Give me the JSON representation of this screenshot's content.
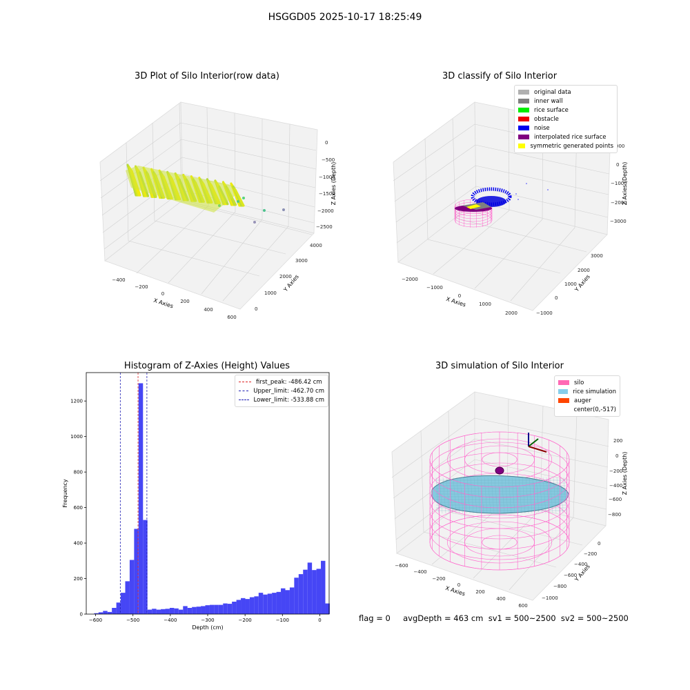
{
  "figure": {
    "suptitle": "HSGGD05 2025-10-17 18:25:49",
    "footer": "flag = 0     avgDepth = 463 cm  sv1 = 500~2500  sv2 = 500~2500"
  },
  "panels": {
    "raw": {
      "title": "3D Plot of Silo Interior(row data)",
      "xlabel": "X Axies",
      "ylabel": "Y Axies",
      "zlabel": "Z Axies (Depth)",
      "xticks": [
        "−400",
        "−200",
        "0",
        "200",
        "400",
        "600"
      ],
      "yticks": [
        "0",
        "1000",
        "2000",
        "3000",
        "4000"
      ],
      "zticks": [
        "0",
        "−500",
        "−1000",
        "−1500",
        "−2000",
        "−2500"
      ]
    },
    "classify": {
      "title": "3D classify of Silo Interior",
      "xlabel": "X Axies",
      "ylabel": "Y Axies",
      "zlabel": "Z Axies (Depth)",
      "xticks": [
        "−2000",
        "−1000",
        "0",
        "1000",
        "2000"
      ],
      "yticks": [
        "−1000",
        "0",
        "1000",
        "2000",
        "3000"
      ],
      "zticks": [
        "0",
        "−1000",
        "−2000",
        "−3000"
      ],
      "zticks_partial": "000",
      "legend": [
        {
          "label": "original data",
          "color": "#b0b0b0"
        },
        {
          "label": "inner wall",
          "color": "#808080"
        },
        {
          "label": "rice surface",
          "color": "#00ee00"
        },
        {
          "label": "obstacle",
          "color": "#ee0000"
        },
        {
          "label": "noise",
          "color": "#0000ee"
        },
        {
          "label": "interpolated rice surface",
          "color": "#800080"
        },
        {
          "label": "symmetric generated points",
          "color": "#ffff00"
        }
      ]
    },
    "simulation": {
      "title": "3D simulation of Silo Interior",
      "xlabel": "X Axies",
      "ylabel": "Y Axies",
      "zlabel": "Z Axies (Depth)",
      "xticks": [
        "−600",
        "−400",
        "−200",
        "0",
        "200",
        "400",
        "600"
      ],
      "yticks": [
        "0",
        "−200",
        "−400",
        "−600",
        "−800",
        "−1000"
      ],
      "zticks": [
        "200",
        "0",
        "−200",
        "−400",
        "−600",
        "−800"
      ],
      "legend": [
        {
          "label": "silo",
          "color": "#ff69b4"
        },
        {
          "label": "rice simulation",
          "color": "#87ceeb"
        },
        {
          "label": "auger",
          "color": "#ff4500"
        },
        {
          "label": "center(0,-517)",
          "color": ""
        }
      ]
    }
  },
  "chart_data": {
    "type": "bar",
    "title": "Histogram of Z-Axies (Height) Values",
    "xlabel": "Depth (cm)",
    "ylabel": "Frequency",
    "xlim": [
      -625,
      25
    ],
    "ylim": [
      0,
      1360
    ],
    "xticks": [
      -600,
      -500,
      -400,
      -300,
      -200,
      -100,
      0
    ],
    "yticks": [
      0,
      200,
      400,
      600,
      800,
      1000,
      1200
    ],
    "bin_width": 11.9,
    "bin_start": -604,
    "bar_color": "#4646f5",
    "values": [
      5,
      10,
      18,
      12,
      35,
      65,
      120,
      185,
      305,
      480,
      1300,
      530,
      25,
      30,
      25,
      28,
      30,
      35,
      32,
      25,
      45,
      35,
      40,
      42,
      45,
      50,
      52,
      52,
      52,
      60,
      58,
      70,
      80,
      90,
      85,
      95,
      100,
      120,
      110,
      115,
      120,
      125,
      145,
      135,
      150,
      205,
      225,
      250,
      290,
      248,
      255,
      300,
      60
    ],
    "vlines": [
      {
        "label": "first_peak: -486.42 cm",
        "x": -486.42,
        "color": "#dd2222"
      },
      {
        "label": "Upper_limit: -462.70 cm",
        "x": -462.7,
        "color": "#1f1fb4"
      },
      {
        "label": "Lower_limit: -533.88 cm",
        "x": -533.88,
        "color": "#1f1fb4"
      }
    ]
  }
}
